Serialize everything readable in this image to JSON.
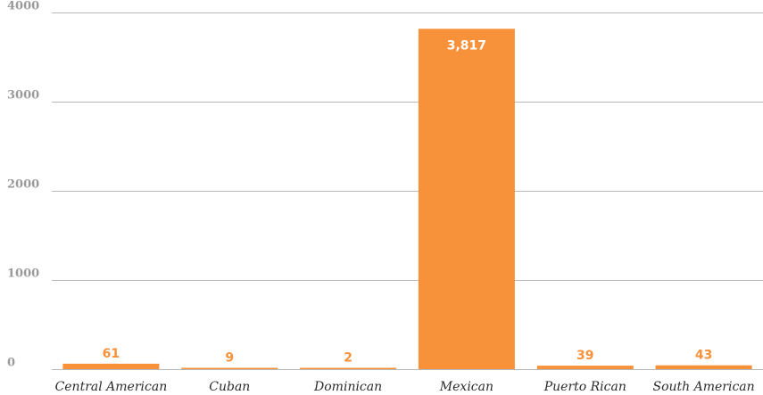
{
  "chart_data": {
    "type": "bar",
    "categories": [
      "Central American",
      "Cuban",
      "Dominican",
      "Mexican",
      "Puerto Rican",
      "South American"
    ],
    "values": [
      61,
      9,
      2,
      3817,
      39,
      43
    ],
    "data_labels": [
      "61",
      "9",
      "2",
      "3,817",
      "39",
      "43"
    ],
    "y_ticks": [
      0,
      1000,
      2000,
      3000,
      4000
    ],
    "y_tick_labels": [
      "0",
      "1000",
      "2000",
      "3000",
      "4000"
    ],
    "ylim": [
      0,
      4000
    ],
    "grid": true,
    "legend": "none",
    "colors": {
      "bar": "#f7913a",
      "label_outside": "#f7913a",
      "label_inside": "#ffffff",
      "grid": "#b8b8b8",
      "tick_text": "#9a9a9a",
      "category_text": "#2b2b2b"
    }
  }
}
